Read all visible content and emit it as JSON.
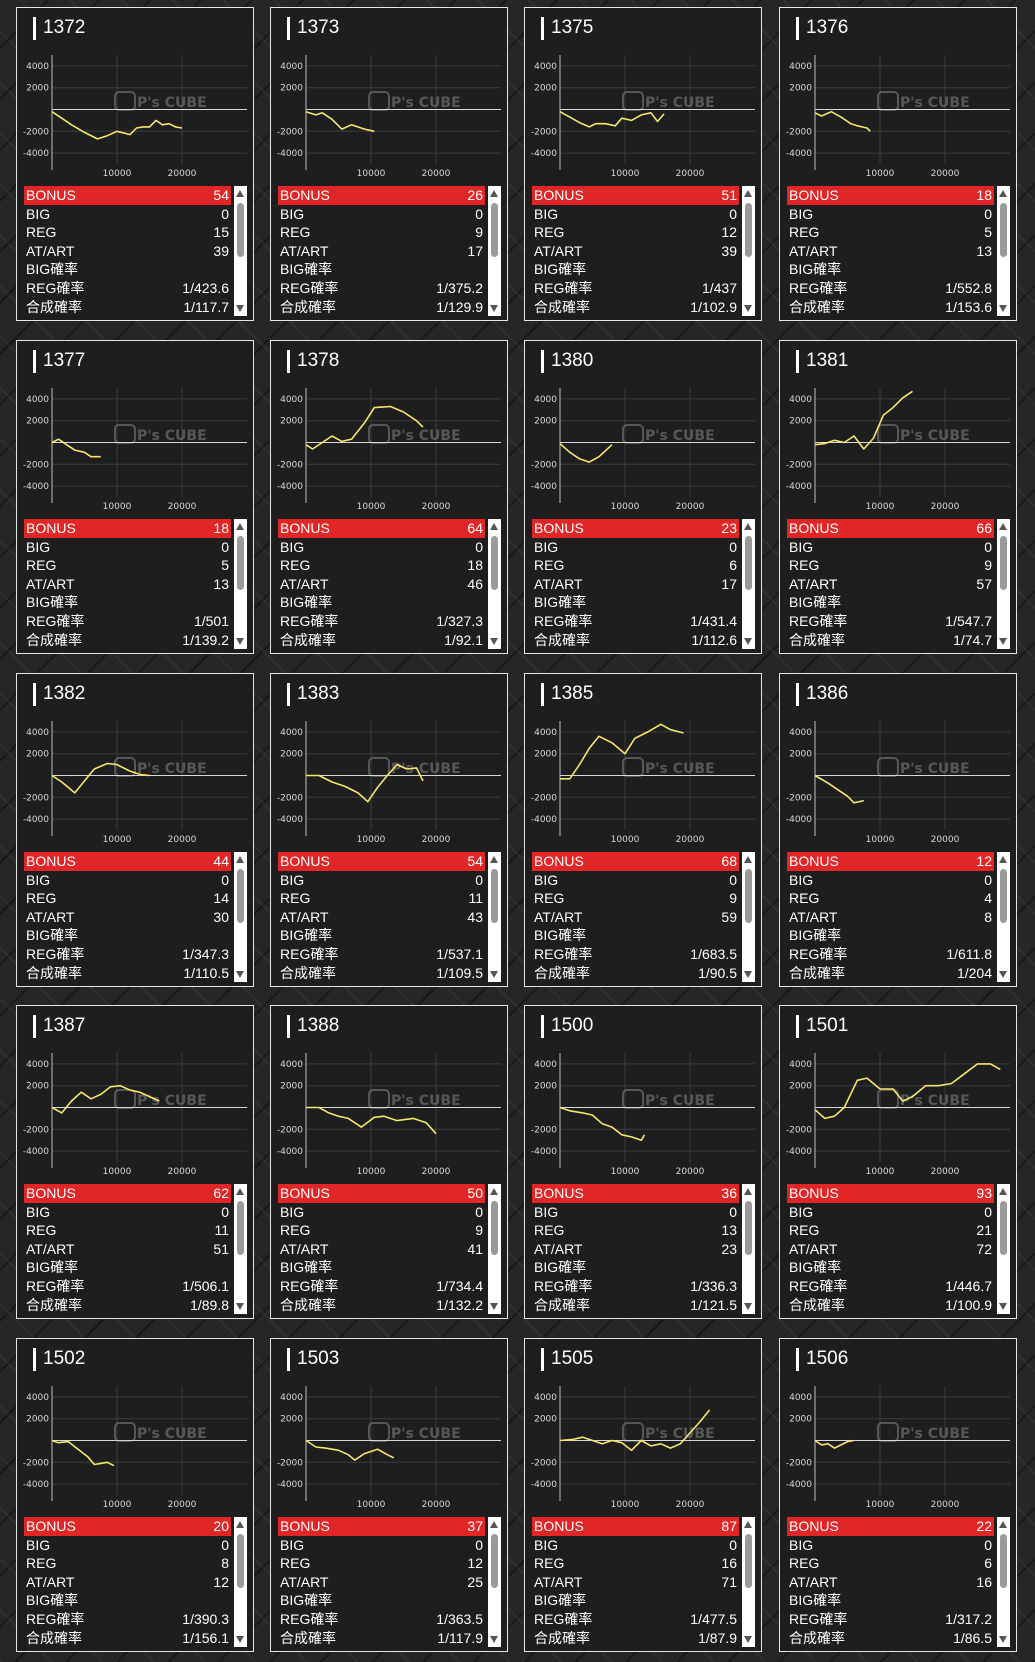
{
  "labels": {
    "bonus": "BONUS",
    "big": "BIG",
    "reg": "REG",
    "at_art": "AT/ART",
    "big_rate": "BIG確率",
    "reg_rate": "REG確率",
    "total_rate": "合成確率"
  },
  "chart_axes": {
    "y_ticks": [
      "4000",
      "2000",
      "-2000",
      "-4000"
    ],
    "x_ticks": [
      "10000",
      "20000"
    ],
    "xlim": [
      0,
      30000
    ],
    "ylim": [
      -5000,
      5000
    ]
  },
  "watermark": "P's CUBE",
  "colors": {
    "line": "#f5e66c",
    "bonus_row": "#e02626",
    "card_bg": "#1e1e1e"
  },
  "machines": [
    {
      "id": "1372",
      "bonus": "54",
      "big": "0",
      "reg": "15",
      "at_art": "39",
      "big_rate": "",
      "reg_rate": "1/423.6",
      "total_rate": "1/117.7",
      "chart_data": {
        "type": "line",
        "x": [
          0,
          1500,
          3000,
          5000,
          7000,
          8500,
          10000,
          12000,
          13000,
          14000,
          15000,
          16000,
          17000,
          18000,
          19000,
          20000
        ],
        "y": [
          -200,
          -800,
          -1400,
          -2100,
          -2700,
          -2400,
          -2000,
          -2300,
          -1700,
          -1600,
          -1600,
          -1000,
          -1400,
          -1300,
          -1600,
          -1700
        ]
      }
    },
    {
      "id": "1373",
      "bonus": "26",
      "big": "0",
      "reg": "9",
      "at_art": "17",
      "big_rate": "",
      "reg_rate": "1/375.2",
      "total_rate": "1/129.9",
      "chart_data": {
        "type": "line",
        "x": [
          0,
          1500,
          2500,
          4000,
          5500,
          7000,
          9000,
          10500
        ],
        "y": [
          -200,
          -500,
          -300,
          -900,
          -1800,
          -1400,
          -1800,
          -2000
        ]
      }
    },
    {
      "id": "1375",
      "bonus": "51",
      "big": "0",
      "reg": "12",
      "at_art": "39",
      "big_rate": "",
      "reg_rate": "1/437",
      "total_rate": "1/102.9",
      "chart_data": {
        "type": "line",
        "x": [
          0,
          1500,
          3000,
          4500,
          5500,
          7000,
          8500,
          9500,
          11000,
          12500,
          14000,
          15000,
          16000
        ],
        "y": [
          -200,
          -700,
          -1200,
          -1600,
          -1300,
          -1300,
          -1500,
          -800,
          -1000,
          -500,
          -300,
          -1100,
          -400
        ]
      }
    },
    {
      "id": "1376",
      "bonus": "18",
      "big": "0",
      "reg": "5",
      "at_art": "13",
      "big_rate": "",
      "reg_rate": "1/552.8",
      "total_rate": "1/153.6",
      "chart_data": {
        "type": "line",
        "x": [
          0,
          1000,
          2500,
          4000,
          5500,
          6500,
          8000,
          8500
        ],
        "y": [
          -300,
          -600,
          -200,
          -700,
          -1300,
          -1500,
          -1700,
          -2000
        ]
      }
    },
    {
      "id": "1377",
      "bonus": "18",
      "big": "0",
      "reg": "5",
      "at_art": "13",
      "big_rate": "",
      "reg_rate": "1/501",
      "total_rate": "1/139.2",
      "chart_data": {
        "type": "line",
        "x": [
          0,
          1000,
          2500,
          3500,
          5000,
          6000,
          7500
        ],
        "y": [
          0,
          300,
          -300,
          -700,
          -900,
          -1300,
          -1300
        ]
      }
    },
    {
      "id": "1378",
      "bonus": "64",
      "big": "0",
      "reg": "18",
      "at_art": "46",
      "big_rate": "",
      "reg_rate": "1/327.3",
      "total_rate": "1/92.1",
      "chart_data": {
        "type": "line",
        "x": [
          0,
          1000,
          2500,
          4000,
          5500,
          7000,
          9000,
          10500,
          13000,
          15000,
          17000,
          18000
        ],
        "y": [
          -200,
          -600,
          0,
          600,
          100,
          300,
          1800,
          3200,
          3300,
          2800,
          2000,
          1400
        ]
      }
    },
    {
      "id": "1380",
      "bonus": "23",
      "big": "0",
      "reg": "6",
      "at_art": "17",
      "big_rate": "",
      "reg_rate": "1/431.4",
      "total_rate": "1/112.6",
      "chart_data": {
        "type": "line",
        "x": [
          0,
          1500,
          3000,
          4500,
          6000,
          8000
        ],
        "y": [
          -100,
          -900,
          -1500,
          -1800,
          -1300,
          -200
        ]
      }
    },
    {
      "id": "1381",
      "bonus": "66",
      "big": "0",
      "reg": "9",
      "at_art": "57",
      "big_rate": "",
      "reg_rate": "1/547.7",
      "total_rate": "1/74.7",
      "chart_data": {
        "type": "line",
        "x": [
          0,
          1500,
          3000,
          4500,
          6000,
          7500,
          9000,
          10500,
          12000,
          13500,
          15000
        ],
        "y": [
          -200,
          -100,
          200,
          0,
          600,
          -600,
          400,
          2500,
          3200,
          4100,
          4700
        ]
      }
    },
    {
      "id": "1382",
      "bonus": "44",
      "big": "0",
      "reg": "14",
      "at_art": "30",
      "big_rate": "",
      "reg_rate": "1/347.3",
      "total_rate": "1/110.5",
      "chart_data": {
        "type": "line",
        "x": [
          0,
          1500,
          3500,
          5000,
          6500,
          8500,
          10000,
          12000,
          13500,
          15000
        ],
        "y": [
          0,
          -600,
          -1600,
          -500,
          600,
          1100,
          1000,
          400,
          100,
          0
        ]
      }
    },
    {
      "id": "1383",
      "bonus": "54",
      "big": "0",
      "reg": "11",
      "at_art": "43",
      "big_rate": "",
      "reg_rate": "1/537.1",
      "total_rate": "1/109.5",
      "chart_data": {
        "type": "line",
        "x": [
          0,
          2000,
          4000,
          6000,
          8000,
          9500,
          11000,
          12500,
          14000,
          15500,
          17000,
          18000
        ],
        "y": [
          0,
          0,
          -600,
          -1000,
          -1600,
          -2400,
          -1100,
          0,
          1000,
          600,
          700,
          -500
        ]
      }
    },
    {
      "id": "1385",
      "bonus": "68",
      "big": "0",
      "reg": "9",
      "at_art": "59",
      "big_rate": "",
      "reg_rate": "1/683.5",
      "total_rate": "1/90.5",
      "chart_data": {
        "type": "line",
        "x": [
          0,
          1500,
          3000,
          4500,
          6000,
          8000,
          10000,
          11500,
          13500,
          15500,
          17000,
          19000
        ],
        "y": [
          -300,
          -300,
          1000,
          2500,
          3600,
          3000,
          2000,
          3400,
          4000,
          4700,
          4200,
          3900
        ]
      }
    },
    {
      "id": "1386",
      "bonus": "12",
      "big": "0",
      "reg": "4",
      "at_art": "8",
      "big_rate": "",
      "reg_rate": "1/611.8",
      "total_rate": "1/204",
      "chart_data": {
        "type": "line",
        "x": [
          0,
          2000,
          3500,
          5000,
          6000,
          7500
        ],
        "y": [
          0,
          -700,
          -1300,
          -1900,
          -2500,
          -2300
        ]
      }
    },
    {
      "id": "1387",
      "bonus": "62",
      "big": "0",
      "reg": "11",
      "at_art": "51",
      "big_rate": "",
      "reg_rate": "1/506.1",
      "total_rate": "1/89.8",
      "chart_data": {
        "type": "line",
        "x": [
          0,
          1500,
          3000,
          4500,
          6000,
          7500,
          9000,
          10500,
          12000,
          13500,
          15000,
          16500
        ],
        "y": [
          0,
          -500,
          600,
          1400,
          800,
          1200,
          1900,
          2000,
          1600,
          1400,
          1000,
          600
        ]
      }
    },
    {
      "id": "1388",
      "bonus": "50",
      "big": "0",
      "reg": "9",
      "at_art": "41",
      "big_rate": "",
      "reg_rate": "1/734.4",
      "total_rate": "1/132.2",
      "chart_data": {
        "type": "line",
        "x": [
          0,
          2000,
          3500,
          5000,
          6500,
          8500,
          10500,
          12000,
          14000,
          16500,
          18500,
          20000
        ],
        "y": [
          0,
          0,
          -500,
          -800,
          -1000,
          -1800,
          -900,
          -800,
          -1200,
          -1000,
          -1400,
          -2400
        ]
      }
    },
    {
      "id": "1500",
      "bonus": "36",
      "big": "0",
      "reg": "13",
      "at_art": "23",
      "big_rate": "",
      "reg_rate": "1/336.3",
      "total_rate": "1/121.5",
      "chart_data": {
        "type": "line",
        "x": [
          0,
          1500,
          3500,
          5000,
          6500,
          8000,
          9500,
          11000,
          12500,
          13000
        ],
        "y": [
          0,
          -300,
          -500,
          -700,
          -1500,
          -1800,
          -2500,
          -2700,
          -3000,
          -2500
        ]
      }
    },
    {
      "id": "1501",
      "bonus": "93",
      "big": "0",
      "reg": "21",
      "at_art": "72",
      "big_rate": "",
      "reg_rate": "1/446.7",
      "total_rate": "1/100.9",
      "chart_data": {
        "type": "line",
        "x": [
          0,
          1500,
          3000,
          4500,
          6500,
          8000,
          10000,
          12000,
          13500,
          15000,
          17000,
          19000,
          21000,
          23000,
          25000,
          27000,
          28500
        ],
        "y": [
          -200,
          -1000,
          -800,
          0,
          2500,
          2700,
          1700,
          1700,
          600,
          1000,
          2000,
          2000,
          2200,
          3100,
          4000,
          4000,
          3500
        ]
      }
    },
    {
      "id": "1502",
      "bonus": "20",
      "big": "0",
      "reg": "8",
      "at_art": "12",
      "big_rate": "",
      "reg_rate": "1/390.3",
      "total_rate": "1/156.1",
      "chart_data": {
        "type": "line",
        "x": [
          0,
          1000,
          2500,
          4000,
          5500,
          6500,
          7500,
          8500,
          9500
        ],
        "y": [
          0,
          -200,
          -100,
          -800,
          -1500,
          -2200,
          -2100,
          -2000,
          -2300
        ]
      }
    },
    {
      "id": "1503",
      "bonus": "37",
      "big": "0",
      "reg": "12",
      "at_art": "25",
      "big_rate": "",
      "reg_rate": "1/363.5",
      "total_rate": "1/117.9",
      "chart_data": {
        "type": "line",
        "x": [
          0,
          1500,
          3000,
          5000,
          6500,
          7500,
          9000,
          11000,
          12500,
          13500
        ],
        "y": [
          0,
          -600,
          -700,
          -900,
          -1300,
          -1800,
          -1200,
          -800,
          -1300,
          -1600
        ]
      }
    },
    {
      "id": "1505",
      "bonus": "87",
      "big": "0",
      "reg": "16",
      "at_art": "71",
      "big_rate": "",
      "reg_rate": "1/477.5",
      "total_rate": "1/87.9",
      "chart_data": {
        "type": "line",
        "x": [
          0,
          2000,
          3500,
          5000,
          6500,
          8000,
          9500,
          11000,
          12500,
          14000,
          15500,
          17000,
          18500,
          20000,
          21500,
          23000
        ],
        "y": [
          0,
          100,
          300,
          0,
          -300,
          0,
          -200,
          -900,
          0,
          -500,
          -300,
          -700,
          -300,
          700,
          1700,
          2800
        ]
      }
    },
    {
      "id": "1506",
      "bonus": "22",
      "big": "0",
      "reg": "6",
      "at_art": "16",
      "big_rate": "",
      "reg_rate": "1/317.2",
      "total_rate": "1/86.5",
      "chart_data": {
        "type": "line",
        "x": [
          0,
          1000,
          2000,
          3000,
          4000,
          5000,
          6000
        ],
        "y": [
          0,
          -400,
          -300,
          -700,
          -400,
          -100,
          0
        ]
      }
    }
  ]
}
